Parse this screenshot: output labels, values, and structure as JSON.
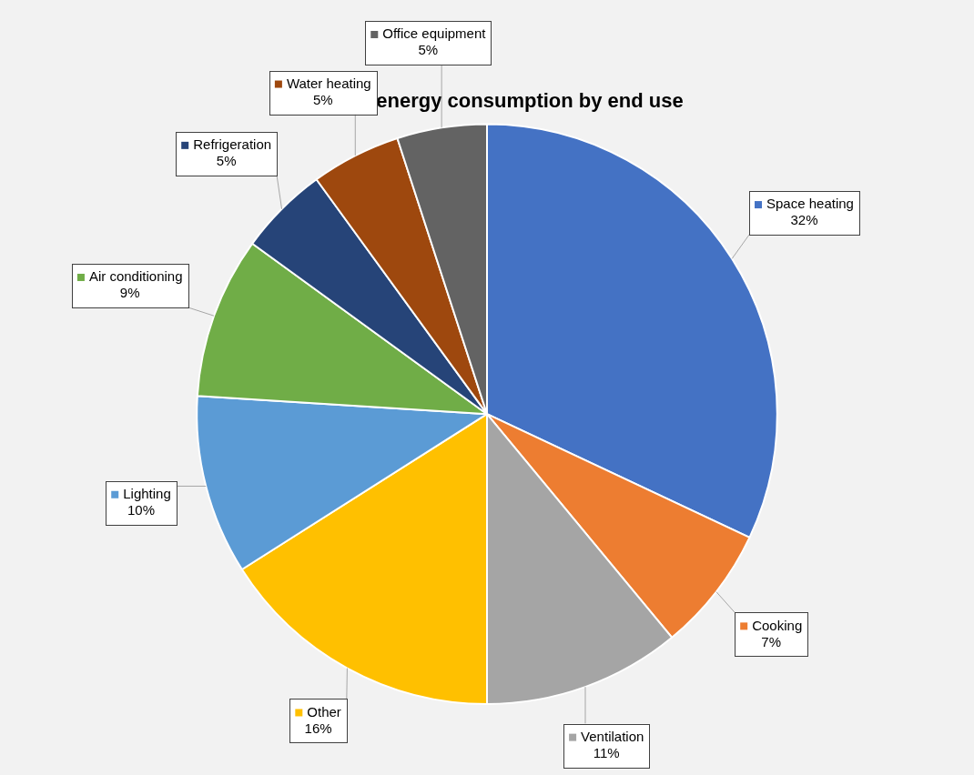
{
  "chart_data": {
    "type": "pie",
    "title": "Building energy consumption by end use",
    "categories": [
      "Space heating",
      "Cooking",
      "Ventilation",
      "Other",
      "Lighting",
      "Air conditioning",
      "Refrigeration",
      "Water heating",
      "Office equipment"
    ],
    "values": [
      32,
      7,
      11,
      16,
      10,
      9,
      5,
      5,
      5
    ],
    "value_labels": [
      "32%",
      "7%",
      "11%",
      "16%",
      "10%",
      "9%",
      "5%",
      "5%",
      "5%"
    ],
    "colors": [
      "#4472c4",
      "#ed7d31",
      "#a5a5a5",
      "#ffc000",
      "#5b9bd5",
      "#70ad47",
      "#264478",
      "#9e480e",
      "#636363"
    ],
    "data_labels": true
  }
}
